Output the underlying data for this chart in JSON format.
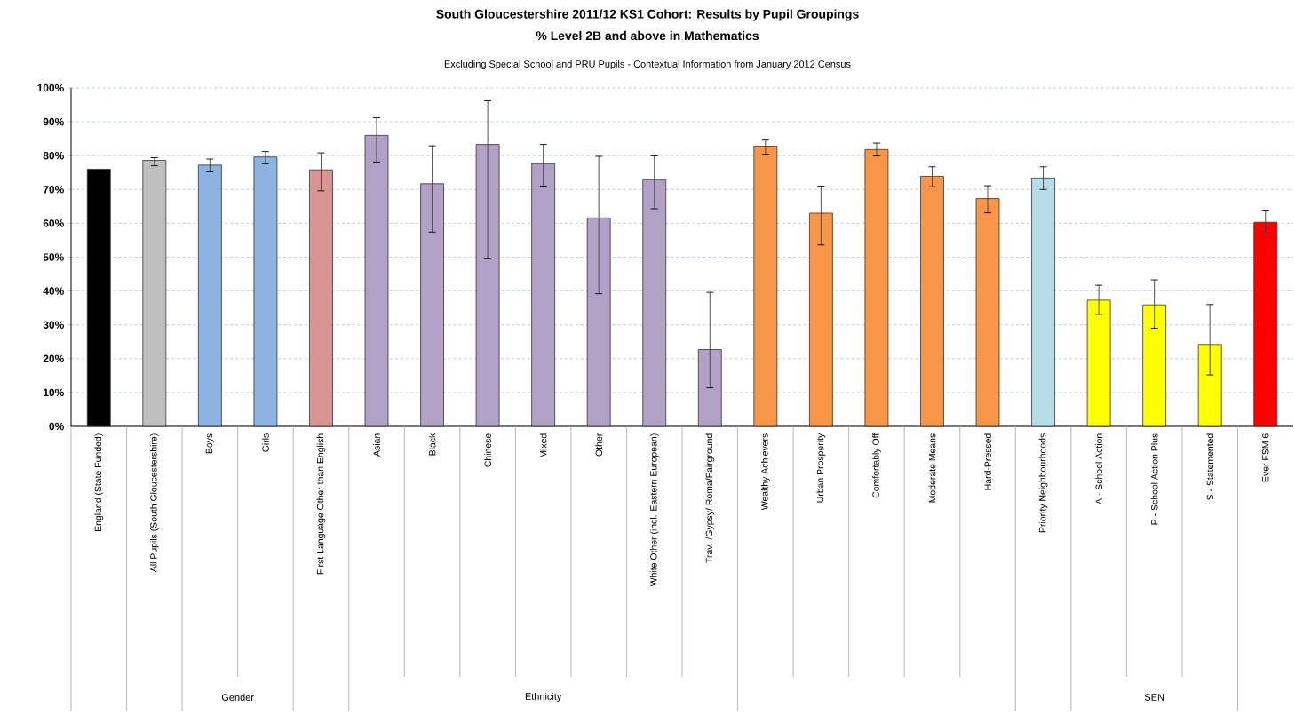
{
  "chart_data": {
    "type": "bar",
    "title": "South Gloucestershire 2011/12 KS1 Cohort: Results by Pupil Groupings",
    "subtitle": "% Level 2B and above in Mathematics",
    "annotations": [
      "Excluding Special School and PRU Pupils - Contextual Information from January 2012 Census",
      "Gender",
      "Ethnicity",
      "SEN"
    ],
    "categories": [
      "England (State Funded)",
      "All Pupils (South Gloucestershire)",
      "Boys",
      "Girls",
      "First Language Other than English",
      "Asian",
      "Black",
      "Chinese",
      "Mixed",
      "Other",
      "White Other (incl. Eastern European)",
      "Trav. /Gypsy/ Roma/Fairground",
      "Wealthy Achievers",
      "Urban Prosperity",
      "Comfortably Off",
      "Moderate Means",
      "Hard-Pressed",
      "Priority Neighbourhoods",
      "A - School Action",
      "P - School Action Plus",
      "S - Statemented",
      "Ever FSM 6"
    ],
    "values": [
      76,
      78.6,
      77.2,
      79.6,
      75.8,
      86.0,
      71.7,
      83.3,
      77.6,
      61.6,
      72.9,
      22.7,
      82.8,
      63.0,
      81.8,
      73.9,
      67.3,
      73.4,
      37.3,
      35.9,
      24.2,
      60.3
    ],
    "errors": [
      null,
      [
        77.0,
        79.4
      ],
      [
        75.2,
        79.0
      ],
      [
        77.6,
        81.2
      ],
      [
        69.6,
        80.8
      ],
      [
        78.1,
        91.2
      ],
      [
        57.4,
        82.9
      ],
      [
        49.5,
        96.2
      ],
      [
        71.0,
        83.3
      ],
      [
        39.2,
        79.8
      ],
      [
        64.3,
        79.9
      ],
      [
        11.4,
        39.6
      ],
      [
        80.4,
        84.6
      ],
      [
        53.6,
        71.0
      ],
      [
        79.9,
        83.7
      ],
      [
        70.8,
        76.7
      ],
      [
        63.1,
        71.1
      ],
      [
        70.0,
        76.7
      ],
      [
        33.1,
        41.7
      ],
      [
        29.0,
        43.3
      ],
      [
        15.2,
        36.0
      ],
      [
        56.8,
        63.9
      ]
    ],
    "colors": [
      "#000000",
      "#bfbfbf",
      "#8db3e2",
      "#8db3e2",
      "#d99594",
      "#b2a1c7",
      "#b2a1c7",
      "#b2a1c7",
      "#b2a1c7",
      "#b2a1c7",
      "#b2a1c7",
      "#b2a1c7",
      "#f79646",
      "#f79646",
      "#f79646",
      "#f79646",
      "#f79646",
      "#b7dde8",
      "#ffff00",
      "#ffff00",
      "#ffff00",
      "#ff0000"
    ],
    "ylim": [
      0,
      100
    ],
    "yticks": [
      {
        "value": 0,
        "label": "0%"
      },
      {
        "value": 10,
        "label": "10%"
      },
      {
        "value": 20,
        "label": "20%"
      },
      {
        "value": 30,
        "label": "30%"
      },
      {
        "value": 40,
        "label": "40%"
      },
      {
        "value": 50,
        "label": "50%"
      },
      {
        "value": 60,
        "label": "60%"
      },
      {
        "value": 70,
        "label": "70%"
      },
      {
        "value": 80,
        "label": "80%"
      },
      {
        "value": 90,
        "label": "90%"
      },
      {
        "value": 100,
        "label": "100%"
      }
    ],
    "grid": "y"
  }
}
